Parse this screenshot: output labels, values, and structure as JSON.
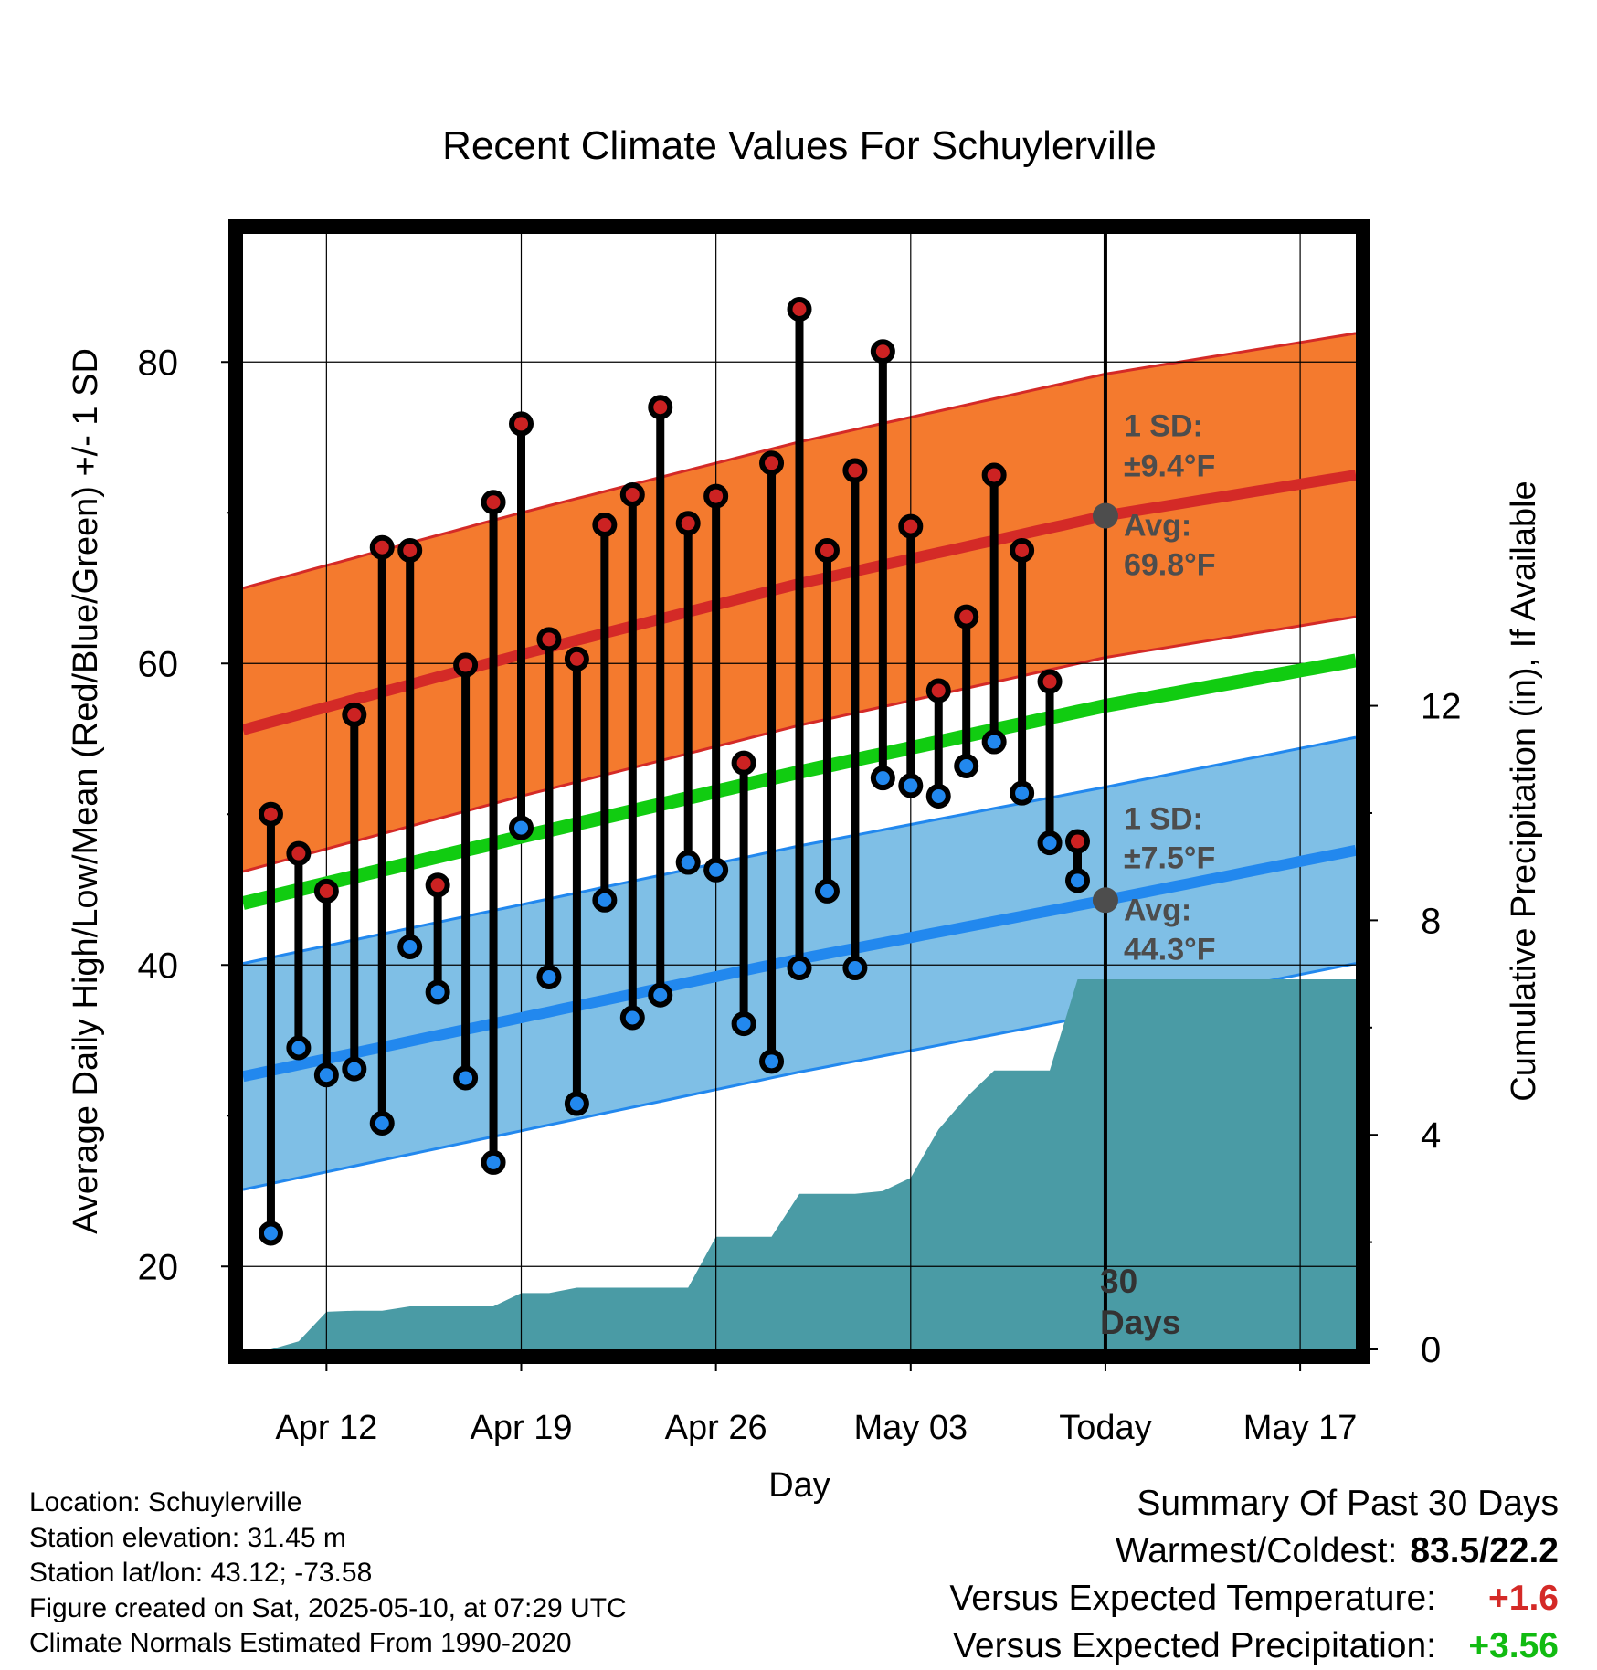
{
  "chart_data": {
    "type": "line",
    "title": "Recent Climate Values For Schuylerville",
    "xlabel": "Day",
    "ylabel_left": "Average Daily High/Low/Mean (Red/Blue/Green) +/- 1 SD",
    "ylabel_right": "Cumulative Precipitation (in), If Available",
    "ylim_left": [
      14.5,
      88.5
    ],
    "ylim_right": [
      0,
      20.8
    ],
    "y_ticks_left": [
      "20",
      "40",
      "60",
      "80"
    ],
    "y_ticks_right": [
      "0",
      "4",
      "8",
      "12"
    ],
    "x_range": [
      "2025-04-09",
      "2025-05-19"
    ],
    "x_tick_labels": [
      "Apr 12",
      "Apr 19",
      "Apr 26",
      "May 03",
      "Today",
      "May 17"
    ],
    "x_tick_dates": [
      "2025-04-12",
      "2025-04-19",
      "2025-04-26",
      "2025-05-03",
      "2025-05-10",
      "2025-05-17"
    ],
    "grid": true,
    "today": "2025-05-10",
    "today_label_line1": "30",
    "today_label_line2": "Days",
    "normals": {
      "dates": [
        "2025-04-09",
        "2025-04-19",
        "2025-04-29",
        "2025-05-10",
        "2025-05-19"
      ],
      "high_avg": [
        55.6,
        60.6,
        65.3,
        69.8,
        72.5
      ],
      "high_sd": 9.4,
      "low_avg": [
        32.6,
        36.5,
        40.4,
        44.3,
        47.6
      ],
      "low_sd": 7.5,
      "mean_avg": [
        44.1,
        48.5,
        52.8,
        57.2,
        60.2
      ]
    },
    "daily": {
      "dates": [
        "2025-04-10",
        "2025-04-11",
        "2025-04-12",
        "2025-04-13",
        "2025-04-14",
        "2025-04-15",
        "2025-04-16",
        "2025-04-17",
        "2025-04-18",
        "2025-04-19",
        "2025-04-20",
        "2025-04-21",
        "2025-04-22",
        "2025-04-23",
        "2025-04-24",
        "2025-04-25",
        "2025-04-26",
        "2025-04-27",
        "2025-04-28",
        "2025-04-29",
        "2025-04-30",
        "2025-05-01",
        "2025-05-02",
        "2025-05-03",
        "2025-05-04",
        "2025-05-05",
        "2025-05-06",
        "2025-05-07",
        "2025-05-08",
        "2025-05-09"
      ],
      "high": [
        50.0,
        47.4,
        44.9,
        56.6,
        67.7,
        67.5,
        45.3,
        59.9,
        70.7,
        75.9,
        61.6,
        60.3,
        69.2,
        71.2,
        77.0,
        69.3,
        71.1,
        53.4,
        73.3,
        83.5,
        67.5,
        72.8,
        80.7,
        69.1,
        58.2,
        63.1,
        72.5,
        67.5,
        58.8,
        48.2
      ],
      "low": [
        22.2,
        34.5,
        32.7,
        33.1,
        29.5,
        41.2,
        38.2,
        32.5,
        26.9,
        49.1,
        39.2,
        30.8,
        44.3,
        36.5,
        38.0,
        46.8,
        46.3,
        36.1,
        33.6,
        39.8,
        44.9,
        39.8,
        52.4,
        51.9,
        51.2,
        53.2,
        54.8,
        51.4,
        48.1,
        45.6
      ]
    },
    "precip": {
      "dates": [
        "2025-04-09",
        "2025-04-10",
        "2025-04-11",
        "2025-04-12",
        "2025-04-13",
        "2025-04-14",
        "2025-04-15",
        "2025-04-16",
        "2025-04-17",
        "2025-04-18",
        "2025-04-19",
        "2025-04-20",
        "2025-04-21",
        "2025-04-22",
        "2025-04-23",
        "2025-04-24",
        "2025-04-25",
        "2025-04-26",
        "2025-04-27",
        "2025-04-28",
        "2025-04-29",
        "2025-04-30",
        "2025-05-01",
        "2025-05-02",
        "2025-05-03",
        "2025-05-04",
        "2025-05-05",
        "2025-05-06",
        "2025-05-07",
        "2025-05-08",
        "2025-05-09",
        "2025-05-10",
        "2025-05-19"
      ],
      "values": [
        0.0,
        0.0,
        0.15,
        0.7,
        0.72,
        0.72,
        0.8,
        0.8,
        0.8,
        0.8,
        1.05,
        1.05,
        1.15,
        1.15,
        1.15,
        1.15,
        1.15,
        2.1,
        2.1,
        2.1,
        2.9,
        2.9,
        2.9,
        2.95,
        3.2,
        4.1,
        4.7,
        5.2,
        5.2,
        5.2,
        6.9,
        6.9,
        6.9
      ]
    },
    "annotations": {
      "high_sd_label": "1 SD:",
      "high_sd_value": "±9.4°F",
      "high_avg_label": "Avg:",
      "high_avg_value": "69.8°F",
      "low_sd_label": "1 SD:",
      "low_sd_value": "±7.5°F",
      "low_avg_label": "Avg:",
      "low_avg_value": "44.3°F"
    },
    "colors": {
      "high_band": "#F47A2E",
      "high_line": "#D42A27",
      "low_band": "#7FBFE6",
      "low_line": "#2288EE",
      "mean_line": "#11CC11",
      "precip_fill": "#4A9BA5",
      "high_dot": "#CC2222",
      "low_dot": "#2288EE",
      "today_marker": "#4D4D4D"
    }
  },
  "station": {
    "location": "Location: Schuylerville",
    "elevation": "Station elevation: 31.45 m",
    "latlon": "Station lat/lon: 43.12; -73.58",
    "created": "Figure created on Sat, 2025-05-10, at 07:29 UTC",
    "normals": "Climate Normals Estimated From 1990-2020"
  },
  "summary": {
    "title": "Summary Of Past 30 Days",
    "warmest_label": "Warmest/Coldest:",
    "warmest_value": "83.5/22.2",
    "temp_label": "Versus Expected Temperature:",
    "temp_value": "+1.6",
    "temp_color": "#D42A27",
    "precip_label": "Versus Expected Precipitation:",
    "precip_value": "+3.56",
    "precip_color": "#11BB11"
  }
}
